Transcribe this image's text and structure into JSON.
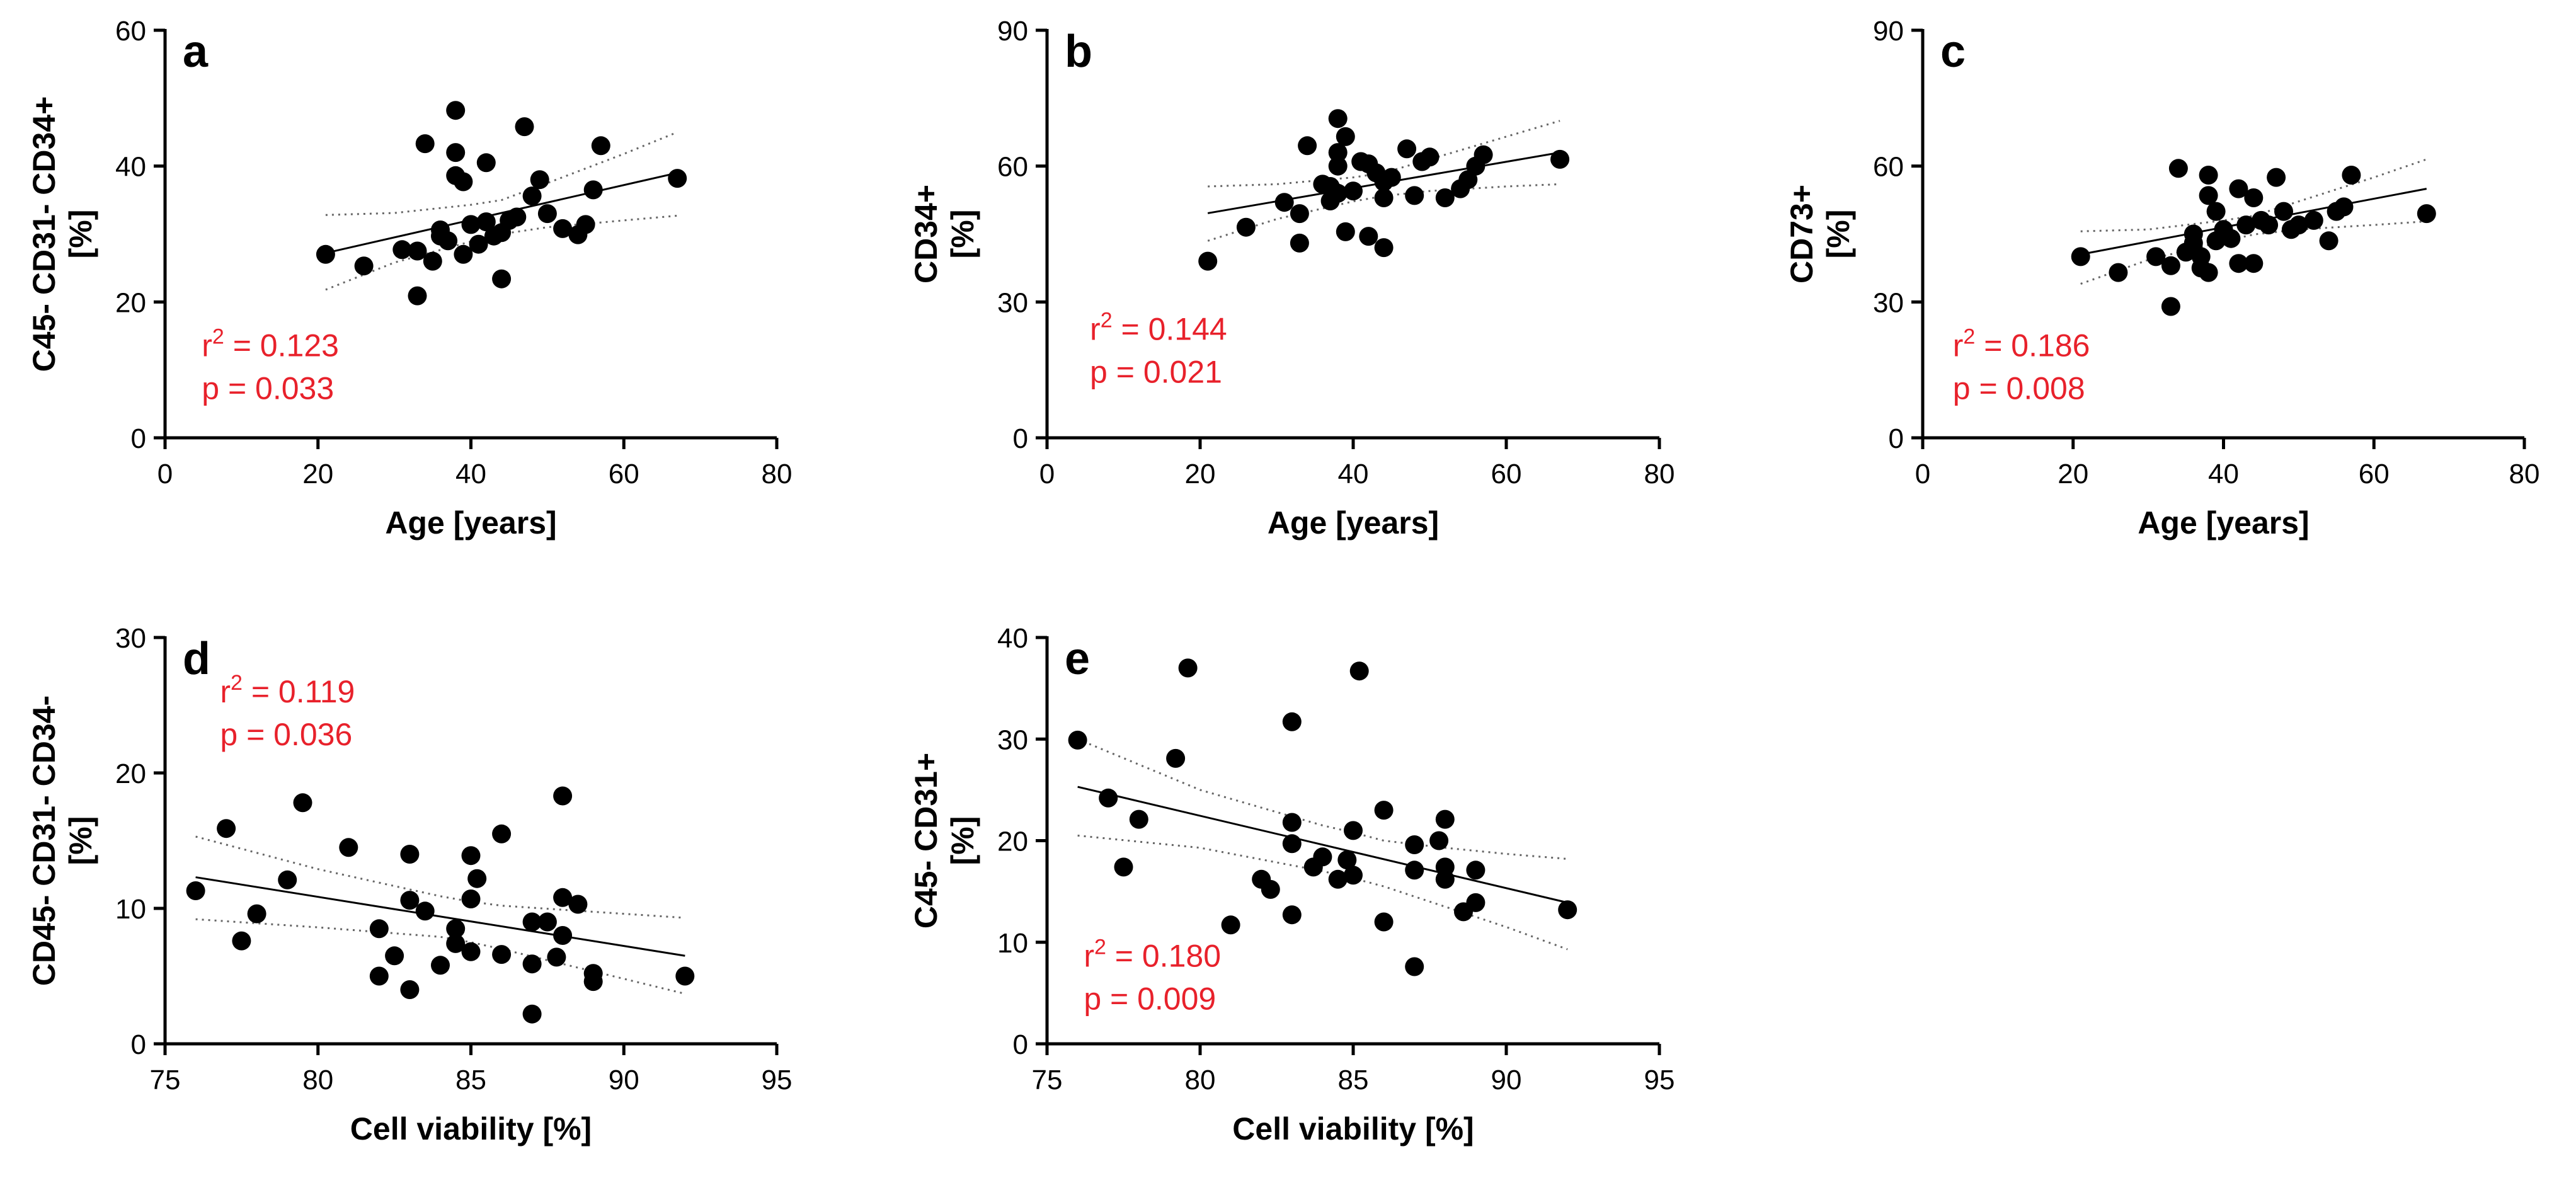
{
  "chart_data": [
    {
      "type": "scatter",
      "panel": "a",
      "xlabel": "Age [years]",
      "ylabel_lines": [
        "C45- CD31- CD34+",
        "[%]"
      ],
      "xlim": [
        0,
        80
      ],
      "ylim": [
        0,
        60
      ],
      "xticks": [
        0,
        20,
        40,
        60,
        80
      ],
      "yticks": [
        0,
        20,
        40,
        60
      ],
      "fit": {
        "x": [
          21,
          67
        ],
        "y": [
          27.2,
          39.0
        ]
      },
      "ci_upper": {
        "x": [
          21,
          30,
          40,
          44,
          50,
          60,
          67
        ],
        "y": [
          32.8,
          33.1,
          34.3,
          35.0,
          37.5,
          41.8,
          45.0
        ]
      },
      "ci_lower": {
        "x": [
          21,
          30,
          40,
          44,
          50,
          60,
          67
        ],
        "y": [
          21.8,
          25.8,
          28.9,
          30.0,
          31.0,
          32.0,
          32.7
        ]
      },
      "stats": {
        "r2_prefix": "r",
        "r2_sup": "2",
        "r2_value": " = 0.123",
        "p": "p = 0.033"
      },
      "x": [
        21,
        26,
        31,
        33,
        33,
        34,
        35,
        36,
        36,
        37,
        38,
        38,
        38,
        39,
        39,
        40,
        41,
        42,
        42,
        43,
        44,
        44,
        45,
        46,
        47,
        48,
        49,
        50,
        52,
        54,
        55,
        56,
        57,
        67
      ],
      "y": [
        27.0,
        25.3,
        27.7,
        27.5,
        20.9,
        43.3,
        26.0,
        30.6,
        29.7,
        29.0,
        48.2,
        42.0,
        38.6,
        37.7,
        27.0,
        31.4,
        28.5,
        40.5,
        31.8,
        29.7,
        23.4,
        30.2,
        32.0,
        32.5,
        45.8,
        35.6,
        38.0,
        33.0,
        30.8,
        29.9,
        31.4,
        36.5,
        43.0,
        38.2
      ]
    },
    {
      "type": "scatter",
      "panel": "b",
      "xlabel": "Age [years]",
      "ylabel_lines": [
        "CD34+",
        "[%]"
      ],
      "xlim": [
        0,
        80
      ],
      "ylim": [
        0,
        90
      ],
      "xticks": [
        0,
        20,
        40,
        60,
        80
      ],
      "yticks": [
        0,
        30,
        60,
        90
      ],
      "fit": {
        "x": [
          21,
          67
        ],
        "y": [
          49.6,
          63.0
        ]
      },
      "ci_upper": {
        "x": [
          21,
          30,
          40,
          44,
          50,
          60,
          67
        ],
        "y": [
          55.5,
          56.0,
          57.5,
          58.5,
          61.5,
          66.5,
          70.0
        ]
      },
      "ci_lower": {
        "x": [
          21,
          30,
          40,
          44,
          50,
          60,
          67
        ],
        "y": [
          43.5,
          48.3,
          52.2,
          53.4,
          54.5,
          55.5,
          56.0
        ]
      },
      "stats": {
        "r2_prefix": "r",
        "r2_sup": "2",
        "r2_value": " = 0.144",
        "p": "p = 0.021"
      },
      "x": [
        21,
        26,
        31,
        33,
        33,
        34,
        36,
        37,
        37,
        38,
        38,
        38,
        38,
        39,
        39,
        40,
        41,
        42,
        42,
        43,
        44,
        44,
        44,
        45,
        47,
        48,
        49,
        50,
        52,
        54,
        55,
        56,
        57,
        67
      ],
      "y": [
        39.0,
        46.5,
        52.0,
        49.5,
        43.0,
        64.5,
        56.0,
        52.3,
        55.5,
        70.5,
        63.0,
        60.0,
        54.0,
        45.5,
        66.5,
        54.5,
        61.0,
        60.5,
        44.5,
        58.5,
        53.0,
        42.0,
        56.5,
        57.5,
        63.8,
        53.5,
        61.0,
        62.0,
        53.0,
        55.0,
        57.0,
        60.0,
        62.5,
        61.5
      ]
    },
    {
      "type": "scatter",
      "panel": "c",
      "xlabel": "Age [years]",
      "ylabel_lines": [
        "CD73+",
        "[%]"
      ],
      "xlim": [
        0,
        80
      ],
      "ylim": [
        0,
        90
      ],
      "xticks": [
        0,
        20,
        40,
        60,
        80
      ],
      "yticks": [
        0,
        30,
        60,
        90
      ],
      "fit": {
        "x": [
          21,
          67
        ],
        "y": [
          40.5,
          55.0
        ]
      },
      "ci_upper": {
        "x": [
          21,
          30,
          40,
          44,
          50,
          60,
          67
        ],
        "y": [
          45.6,
          46.0,
          48.0,
          49.0,
          52.2,
          57.5,
          61.5
        ]
      },
      "ci_lower": {
        "x": [
          21,
          30,
          40,
          44,
          50,
          60,
          67
        ],
        "y": [
          34.0,
          39.3,
          43.4,
          44.9,
          46.0,
          47.0,
          47.8
        ]
      },
      "stats": {
        "r2_prefix": "r",
        "r2_sup": "2",
        "r2_value": " = 0.186",
        "p": "p = 0.008"
      },
      "x": [
        21,
        26,
        31,
        33,
        33,
        34,
        35,
        36,
        36,
        37,
        37,
        38,
        38,
        38,
        39,
        39,
        40,
        41,
        42,
        42,
        43,
        44,
        44,
        45,
        46,
        47,
        48,
        49,
        50,
        52,
        54,
        55,
        56,
        57,
        67
      ],
      "y": [
        40.0,
        36.5,
        40.0,
        38.0,
        29.0,
        59.5,
        41.0,
        45.0,
        43.0,
        37.5,
        40.0,
        58.0,
        53.5,
        36.5,
        50.0,
        43.5,
        46.0,
        44.0,
        55.0,
        38.5,
        47.0,
        38.5,
        53.0,
        48.0,
        47.0,
        57.5,
        50.0,
        46.0,
        47.0,
        48.0,
        43.5,
        50.0,
        51.0,
        58.0,
        49.5
      ]
    },
    {
      "type": "scatter",
      "panel": "d",
      "xlabel": "Cell viability [%]",
      "ylabel_lines": [
        "CD45- CD31- CD34-",
        "[%]"
      ],
      "xlim": [
        75,
        95
      ],
      "ylim": [
        0,
        30
      ],
      "xticks": [
        75,
        80,
        85,
        90,
        95
      ],
      "yticks": [
        0,
        10,
        20,
        30
      ],
      "fit": {
        "x": [
          76,
          92
        ],
        "y": [
          12.3,
          6.5
        ]
      },
      "ci_upper": {
        "x": [
          76,
          80,
          84,
          85,
          86,
          88,
          90,
          92
        ],
        "y": [
          15.3,
          12.9,
          10.9,
          10.5,
          10.2,
          9.9,
          9.6,
          9.3
        ]
      },
      "ci_lower": {
        "x": [
          76,
          80,
          84,
          85,
          86,
          88,
          90,
          92
        ],
        "y": [
          9.2,
          8.6,
          7.9,
          7.5,
          7.0,
          5.9,
          4.8,
          3.7
        ]
      },
      "stats": {
        "r2_prefix": "r",
        "r2_sup": "2",
        "r2_value": " = 0.119",
        "p": "p = 0.036"
      },
      "x": [
        76,
        77,
        77.5,
        78,
        79,
        79.5,
        81,
        82,
        82,
        82.5,
        83,
        83,
        83,
        83.5,
        84,
        84.5,
        84.5,
        85,
        85,
        85,
        85.2,
        86,
        86,
        87,
        87,
        87,
        87.5,
        87.8,
        88,
        88,
        88,
        88.5,
        89,
        89,
        92
      ],
      "y": [
        11.3,
        15.9,
        7.6,
        9.6,
        12.1,
        17.8,
        14.5,
        8.5,
        5.0,
        6.5,
        14.0,
        10.6,
        4.0,
        9.8,
        5.8,
        8.5,
        7.4,
        13.9,
        10.7,
        6.8,
        12.2,
        15.5,
        6.6,
        9.0,
        5.9,
        2.2,
        9.0,
        6.4,
        18.3,
        10.8,
        8.0,
        10.3,
        5.2,
        4.6,
        5.0
      ]
    },
    {
      "type": "scatter",
      "panel": "e",
      "xlabel": "Cell viability [%]",
      "ylabel_lines": [
        "C45- CD31+",
        "[%]"
      ],
      "xlim": [
        75,
        95
      ],
      "ylim": [
        0,
        40
      ],
      "xticks": [
        75,
        80,
        85,
        90,
        95
      ],
      "yticks": [
        0,
        10,
        20,
        30,
        40
      ],
      "fit": {
        "x": [
          76,
          92
        ],
        "y": [
          25.3,
          13.9
        ]
      },
      "ci_upper": {
        "x": [
          76,
          80,
          84,
          85,
          86,
          88,
          90,
          92
        ],
        "y": [
          30.0,
          25.0,
          21.5,
          20.8,
          20.0,
          19.3,
          18.7,
          18.2
        ]
      },
      "ci_lower": {
        "x": [
          76,
          80,
          84,
          85,
          86,
          88,
          90,
          92
        ],
        "y": [
          20.5,
          19.3,
          17.0,
          16.3,
          15.5,
          13.5,
          11.5,
          9.3
        ]
      },
      "stats": {
        "r2_prefix": "r",
        "r2_sup": "2",
        "r2_value": " = 0.180",
        "p": "p = 0.009"
      },
      "x": [
        76,
        77,
        77.5,
        78,
        79.2,
        79.6,
        81,
        82,
        82.3,
        83,
        83,
        83,
        83,
        83.7,
        84,
        84.5,
        84.8,
        85,
        85,
        85.2,
        86,
        86,
        87,
        87,
        87,
        87.8,
        88,
        88,
        88,
        88.6,
        89,
        89,
        92
      ],
      "y": [
        29.9,
        24.2,
        17.4,
        22.1,
        28.1,
        37.0,
        11.7,
        16.2,
        15.2,
        31.7,
        21.8,
        19.7,
        12.7,
        17.4,
        18.4,
        16.2,
        18.1,
        21.0,
        16.6,
        36.7,
        23.0,
        12.0,
        19.6,
        17.1,
        7.6,
        20.0,
        22.1,
        17.4,
        16.2,
        13.0,
        13.9,
        17.1,
        13.2
      ]
    }
  ]
}
